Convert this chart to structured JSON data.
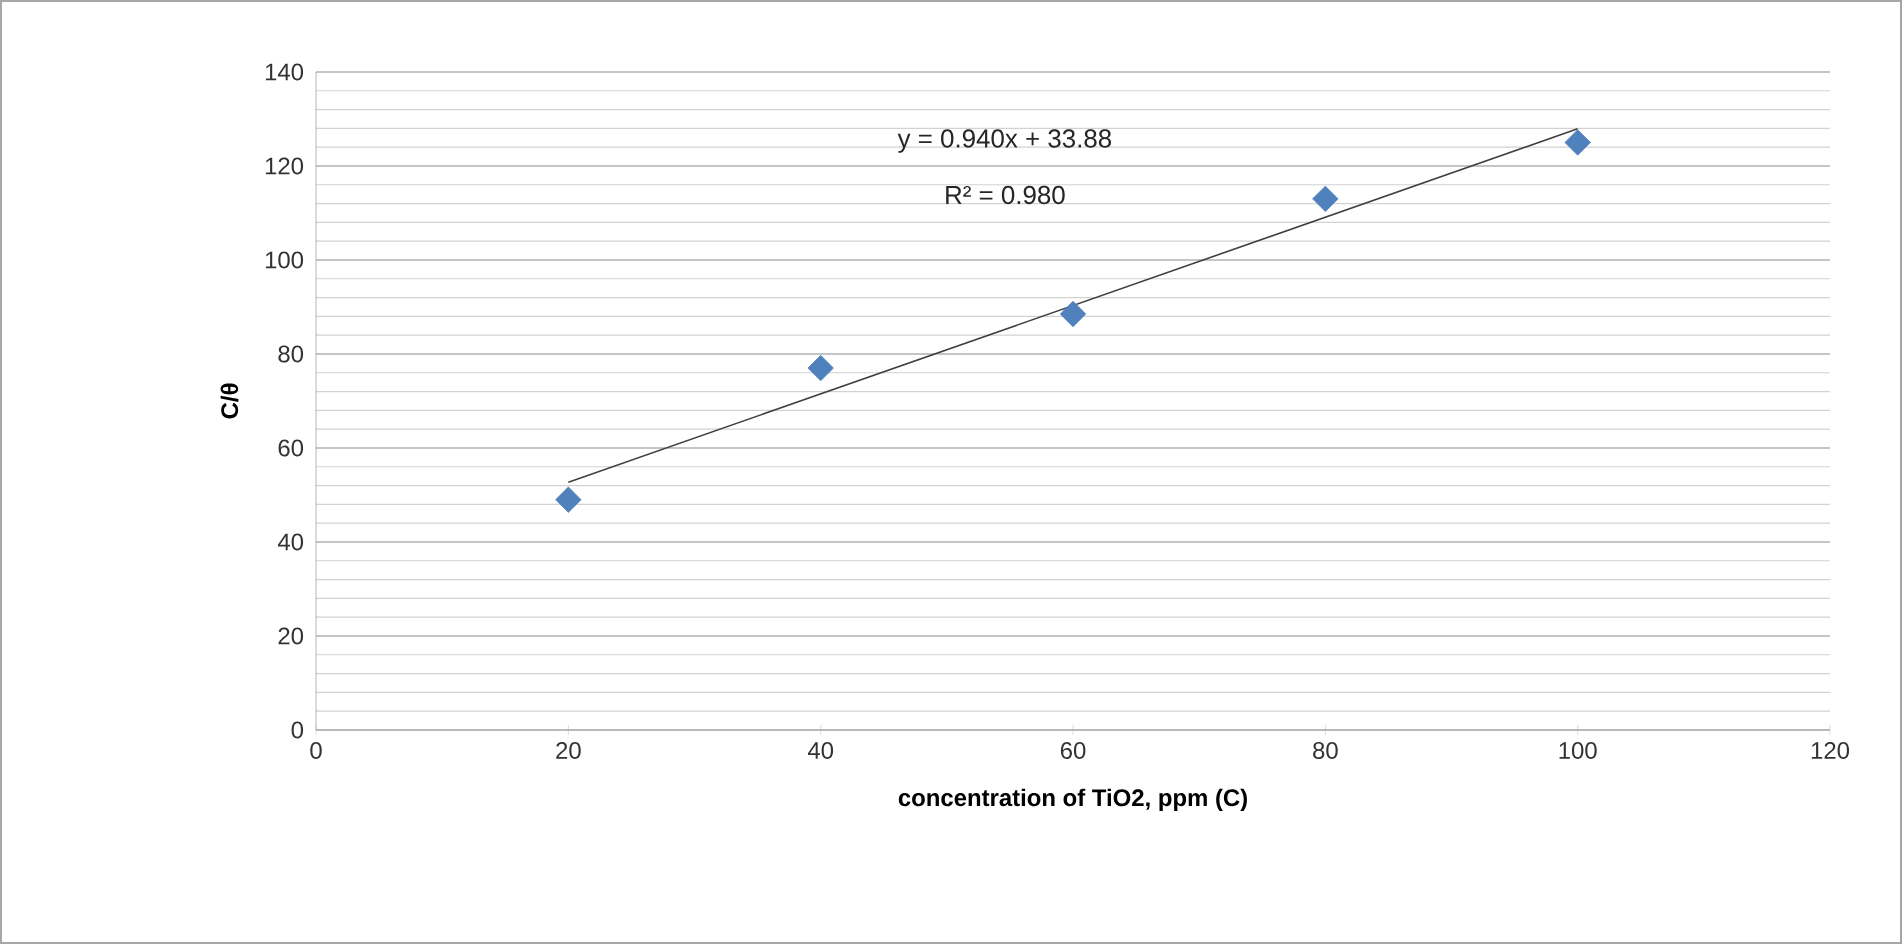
{
  "chart_data": {
    "type": "scatter",
    "xlabel": "concentration of TiO2, ppm (C)",
    "ylabel": "C/θ",
    "annotations": [
      "y = 0.940x + 33.88",
      "R² = 0.980"
    ],
    "series": [
      {
        "color": "#4f81bd",
        "marker": "diamond",
        "x": [
          20,
          40,
          60,
          80,
          100
        ],
        "values": [
          49,
          77,
          88.5,
          113,
          125
        ]
      },
      {
        "type": "line",
        "color": "#404040",
        "marker": "none",
        "x": [
          20,
          100
        ],
        "values": [
          52.7,
          127.9
        ]
      }
    ],
    "xlim": [
      0,
      120
    ],
    "xticks": [
      0,
      20,
      40,
      60,
      80,
      100,
      120
    ],
    "ylim": [
      0,
      140
    ],
    "yticks": [
      0,
      20,
      40,
      60,
      80,
      100,
      120,
      140
    ],
    "grid": "y"
  }
}
